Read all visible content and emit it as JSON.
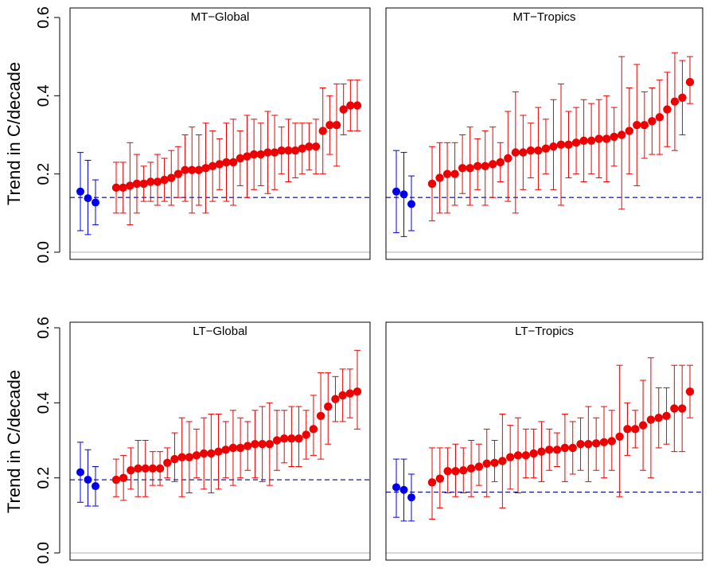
{
  "chart_data": [
    {
      "type": "scatter",
      "title": "MT−Global",
      "ylabel": "Trend in C/decade",
      "ylim": [
        0,
        0.6
      ],
      "yticks": [
        "0.0",
        "0.2",
        "0.4",
        "0.6"
      ],
      "reference_line": 0.14,
      "zero_line": 0,
      "colors": {
        "observations": "#0000ee",
        "models": "#ee0000",
        "reference": "#00008b",
        "zero": "#bfbfbf"
      },
      "series": [
        {
          "values": [
            0.155,
            0.138,
            0.127
          ],
          "lower": [
            0.055,
            0.045,
            0.07
          ],
          "upper": [
            0.255,
            0.235,
            0.185
          ]
        },
        {
          "values": [
            0.165,
            0.165,
            0.17,
            0.175,
            0.175,
            0.18,
            0.18,
            0.185,
            0.19,
            0.2,
            0.21,
            0.21,
            0.21,
            0.215,
            0.22,
            0.225,
            0.23,
            0.23,
            0.24,
            0.245,
            0.25,
            0.25,
            0.255,
            0.255,
            0.26,
            0.26,
            0.26,
            0.265,
            0.27,
            0.27,
            0.31,
            0.325,
            0.325,
            0.365,
            0.375,
            0.375
          ],
          "lower": [
            0.1,
            0.1,
            0.07,
            0.1,
            0.13,
            0.13,
            0.12,
            0.13,
            0.12,
            0.14,
            0.13,
            0.1,
            0.12,
            0.1,
            0.13,
            0.16,
            0.13,
            0.12,
            0.17,
            0.14,
            0.16,
            0.17,
            0.15,
            0.16,
            0.2,
            0.18,
            0.19,
            0.2,
            0.21,
            0.2,
            0.2,
            0.25,
            0.22,
            0.3,
            0.31,
            0.31
          ],
          "upper": [
            0.23,
            0.23,
            0.28,
            0.25,
            0.22,
            0.23,
            0.25,
            0.24,
            0.26,
            0.27,
            0.3,
            0.32,
            0.3,
            0.33,
            0.31,
            0.29,
            0.33,
            0.34,
            0.31,
            0.35,
            0.34,
            0.33,
            0.36,
            0.35,
            0.32,
            0.34,
            0.33,
            0.33,
            0.33,
            0.34,
            0.42,
            0.4,
            0.43,
            0.43,
            0.44,
            0.44
          ]
        }
      ]
    },
    {
      "type": "scatter",
      "title": "MT−Tropics",
      "ylim": [
        0,
        0.6
      ],
      "reference_line": 0.14,
      "zero_line": 0,
      "colors": {
        "observations": "#0000ee",
        "models": "#ee0000",
        "reference": "#00008b",
        "zero": "#bfbfbf"
      },
      "series": [
        {
          "values": [
            0.155,
            0.148,
            0.123
          ],
          "lower": [
            0.05,
            0.04,
            0.055
          ],
          "upper": [
            0.26,
            0.255,
            0.195
          ]
        },
        {
          "values": [
            0.175,
            0.19,
            0.2,
            0.2,
            0.215,
            0.215,
            0.22,
            0.22,
            0.225,
            0.23,
            0.24,
            0.255,
            0.255,
            0.26,
            0.26,
            0.265,
            0.27,
            0.275,
            0.275,
            0.28,
            0.285,
            0.285,
            0.29,
            0.29,
            0.295,
            0.3,
            0.31,
            0.325,
            0.325,
            0.335,
            0.345,
            0.365,
            0.385,
            0.395,
            0.435
          ],
          "lower": [
            0.08,
            0.1,
            0.1,
            0.12,
            0.15,
            0.12,
            0.16,
            0.12,
            0.14,
            0.18,
            0.13,
            0.1,
            0.16,
            0.19,
            0.16,
            0.2,
            0.16,
            0.12,
            0.19,
            0.2,
            0.18,
            0.2,
            0.19,
            0.18,
            0.22,
            0.11,
            0.2,
            0.17,
            0.24,
            0.25,
            0.25,
            0.27,
            0.26,
            0.3,
            0.38
          ],
          "upper": [
            0.27,
            0.28,
            0.28,
            0.28,
            0.3,
            0.32,
            0.29,
            0.31,
            0.32,
            0.28,
            0.36,
            0.41,
            0.35,
            0.33,
            0.37,
            0.34,
            0.39,
            0.43,
            0.36,
            0.37,
            0.39,
            0.38,
            0.39,
            0.4,
            0.37,
            0.5,
            0.42,
            0.48,
            0.41,
            0.42,
            0.44,
            0.46,
            0.51,
            0.49,
            0.5
          ]
        }
      ]
    },
    {
      "type": "scatter",
      "title": "LT−Global",
      "ylabel": "Trend in C/decade",
      "ylim": [
        0,
        0.6
      ],
      "yticks": [
        "0.0",
        "0.2",
        "0.4",
        "0.6"
      ],
      "reference_line": 0.195,
      "zero_line": 0,
      "colors": {
        "observations": "#0000ee",
        "models": "#ee0000",
        "reference": "#00008b",
        "zero": "#bfbfbf"
      },
      "series": [
        {
          "values": [
            0.215,
            0.195,
            0.178
          ],
          "lower": [
            0.135,
            0.125,
            0.125
          ],
          "upper": [
            0.295,
            0.275,
            0.23
          ]
        },
        {
          "values": [
            0.195,
            0.2,
            0.22,
            0.225,
            0.225,
            0.225,
            0.225,
            0.24,
            0.25,
            0.255,
            0.255,
            0.26,
            0.265,
            0.265,
            0.27,
            0.275,
            0.28,
            0.28,
            0.285,
            0.29,
            0.29,
            0.29,
            0.3,
            0.305,
            0.305,
            0.305,
            0.315,
            0.33,
            0.365,
            0.39,
            0.41,
            0.42,
            0.425,
            0.43
          ],
          "lower": [
            0.15,
            0.14,
            0.17,
            0.15,
            0.15,
            0.18,
            0.18,
            0.2,
            0.19,
            0.15,
            0.16,
            0.2,
            0.17,
            0.16,
            0.17,
            0.2,
            0.18,
            0.2,
            0.22,
            0.2,
            0.19,
            0.18,
            0.22,
            0.24,
            0.23,
            0.23,
            0.25,
            0.26,
            0.25,
            0.29,
            0.35,
            0.35,
            0.36,
            0.33
          ],
          "upper": [
            0.25,
            0.26,
            0.28,
            0.3,
            0.3,
            0.27,
            0.27,
            0.28,
            0.32,
            0.36,
            0.35,
            0.33,
            0.36,
            0.37,
            0.37,
            0.35,
            0.38,
            0.36,
            0.35,
            0.38,
            0.39,
            0.4,
            0.38,
            0.38,
            0.39,
            0.39,
            0.38,
            0.42,
            0.48,
            0.48,
            0.47,
            0.49,
            0.49,
            0.54
          ]
        }
      ]
    },
    {
      "type": "scatter",
      "title": "LT−Tropics",
      "ylim": [
        0,
        0.6
      ],
      "reference_line": 0.162,
      "zero_line": 0,
      "colors": {
        "observations": "#0000ee",
        "models": "#ee0000",
        "reference": "#00008b",
        "zero": "#bfbfbf"
      },
      "series": [
        {
          "values": [
            0.175,
            0.168,
            0.148
          ],
          "lower": [
            0.095,
            0.085,
            0.085
          ],
          "upper": [
            0.25,
            0.25,
            0.21
          ]
        },
        {
          "values": [
            0.188,
            0.198,
            0.218,
            0.218,
            0.22,
            0.225,
            0.23,
            0.238,
            0.24,
            0.245,
            0.255,
            0.26,
            0.26,
            0.265,
            0.27,
            0.275,
            0.275,
            0.28,
            0.28,
            0.29,
            0.29,
            0.292,
            0.295,
            0.298,
            0.31,
            0.33,
            0.33,
            0.34,
            0.355,
            0.36,
            0.365,
            0.385,
            0.385,
            0.43
          ],
          "lower": [
            0.09,
            0.12,
            0.16,
            0.15,
            0.16,
            0.15,
            0.18,
            0.15,
            0.19,
            0.12,
            0.17,
            0.16,
            0.2,
            0.2,
            0.19,
            0.22,
            0.23,
            0.19,
            0.21,
            0.22,
            0.19,
            0.22,
            0.2,
            0.22,
            0.15,
            0.26,
            0.28,
            0.22,
            0.2,
            0.28,
            0.29,
            0.27,
            0.27,
            0.36
          ],
          "upper": [
            0.28,
            0.28,
            0.28,
            0.29,
            0.28,
            0.3,
            0.29,
            0.33,
            0.3,
            0.37,
            0.34,
            0.36,
            0.33,
            0.33,
            0.35,
            0.33,
            0.32,
            0.37,
            0.35,
            0.36,
            0.39,
            0.36,
            0.39,
            0.38,
            0.5,
            0.4,
            0.38,
            0.46,
            0.52,
            0.44,
            0.44,
            0.5,
            0.5,
            0.5
          ]
        }
      ]
    }
  ]
}
